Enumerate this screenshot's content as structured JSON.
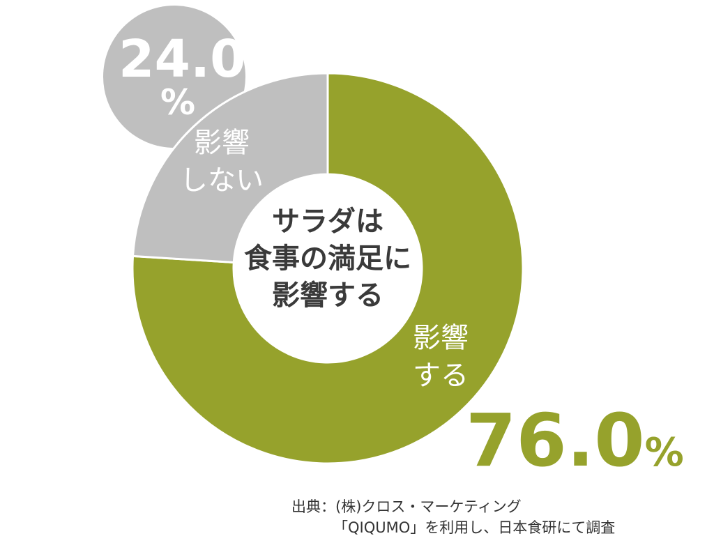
{
  "chart_data": {
    "type": "pie",
    "donut": true,
    "title": "サラダは\n食事の満足に\n影響する",
    "categories": [
      "影響\nする",
      "影響\nしない"
    ],
    "values": [
      76.0,
      24.0
    ],
    "value_labels": [
      "76.0%",
      "24.0%"
    ],
    "colors": [
      "#96a22c",
      "#bfbfbf"
    ],
    "source": [
      "出典：(株)クロス・マーケティング",
      "「QIQUMO」を利用し、日本食研にて調査"
    ]
  }
}
